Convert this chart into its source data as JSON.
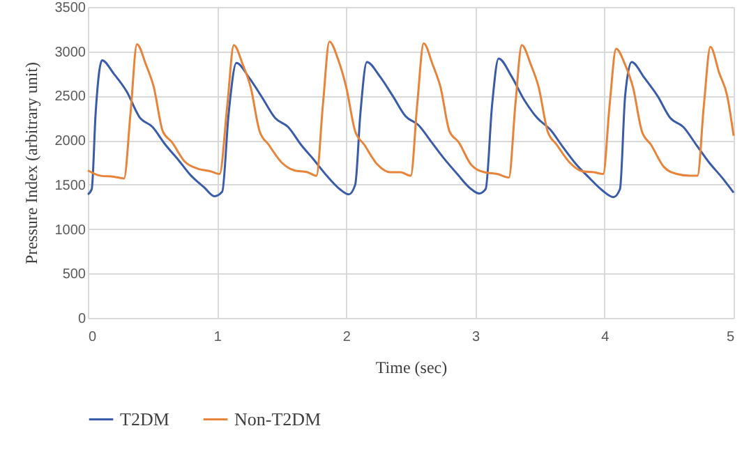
{
  "chart_data": {
    "type": "line",
    "xlabel": "Time (sec)",
    "ylabel": "Pressure Index (arbitrary unit)",
    "xlim": [
      0,
      5
    ],
    "xticks": [
      0,
      1,
      2,
      3,
      4,
      5
    ],
    "ylim": [
      0,
      3500
    ],
    "yticks": [
      0,
      500,
      1000,
      1500,
      2000,
      2500,
      3000,
      3500
    ],
    "grid": true,
    "legend": "bottom",
    "marker": "none",
    "line_style": "solid",
    "series": [
      {
        "name": "T2DM",
        "color": "#3a5ca8",
        "x": [
          0,
          0.03,
          0.06,
          0.11,
          0.2,
          0.3,
          0.4,
          0.5,
          0.6,
          0.7,
          0.8,
          0.9,
          0.98,
          1.04,
          1.09,
          1.15,
          1.25,
          1.35,
          1.45,
          1.55,
          1.65,
          1.75,
          1.85,
          1.95,
          2.02,
          2.07,
          2.11,
          2.16,
          2.26,
          2.36,
          2.46,
          2.56,
          2.66,
          2.76,
          2.86,
          2.96,
          3.03,
          3.08,
          3.13,
          3.18,
          3.28,
          3.38,
          3.48,
          3.58,
          3.68,
          3.78,
          3.88,
          3.98,
          4.07,
          4.12,
          4.16,
          4.21,
          4.31,
          4.41,
          4.51,
          4.61,
          4.71,
          4.81,
          4.91,
          5.0
        ],
        "values": [
          1390,
          1450,
          2300,
          2900,
          2750,
          2550,
          2260,
          2150,
          1950,
          1780,
          1600,
          1470,
          1370,
          1420,
          2300,
          2870,
          2700,
          2480,
          2250,
          2150,
          1950,
          1780,
          1600,
          1450,
          1390,
          1500,
          2300,
          2880,
          2720,
          2500,
          2270,
          2170,
          1980,
          1790,
          1620,
          1460,
          1400,
          1450,
          2400,
          2920,
          2720,
          2450,
          2250,
          2120,
          1920,
          1730,
          1580,
          1440,
          1360,
          1450,
          2500,
          2880,
          2700,
          2500,
          2250,
          2150,
          1950,
          1750,
          1580,
          1410
        ]
      },
      {
        "name": "Non-T2DM",
        "color": "#e8833a",
        "x": [
          0,
          0.1,
          0.2,
          0.28,
          0.33,
          0.38,
          0.45,
          0.51,
          0.58,
          0.65,
          0.75,
          0.85,
          0.95,
          1.02,
          1.08,
          1.13,
          1.2,
          1.26,
          1.33,
          1.4,
          1.5,
          1.6,
          1.7,
          1.77,
          1.82,
          1.87,
          1.94,
          2.0,
          2.07,
          2.14,
          2.24,
          2.34,
          2.42,
          2.5,
          2.55,
          2.6,
          2.67,
          2.73,
          2.8,
          2.87,
          2.97,
          3.07,
          3.17,
          3.26,
          3.31,
          3.36,
          3.43,
          3.49,
          3.56,
          3.63,
          3.73,
          3.83,
          3.92,
          3.99,
          4.04,
          4.09,
          4.16,
          4.22,
          4.29,
          4.36,
          4.46,
          4.56,
          4.66,
          4.72,
          4.77,
          4.82,
          4.89,
          4.95,
          5.0
        ],
        "values": [
          1660,
          1600,
          1590,
          1570,
          2300,
          3080,
          2850,
          2600,
          2100,
          1980,
          1760,
          1680,
          1650,
          1620,
          2400,
          3070,
          2850,
          2600,
          2100,
          1950,
          1750,
          1660,
          1640,
          1600,
          2400,
          3110,
          2900,
          2600,
          2100,
          1950,
          1730,
          1640,
          1640,
          1600,
          2400,
          3090,
          2850,
          2600,
          2100,
          1980,
          1720,
          1640,
          1620,
          1580,
          2400,
          3070,
          2850,
          2600,
          2100,
          1950,
          1750,
          1650,
          1640,
          1620,
          2400,
          3030,
          2850,
          2600,
          2100,
          1950,
          1700,
          1620,
          1600,
          1600,
          2400,
          3050,
          2750,
          2500,
          2050
        ]
      }
    ]
  }
}
